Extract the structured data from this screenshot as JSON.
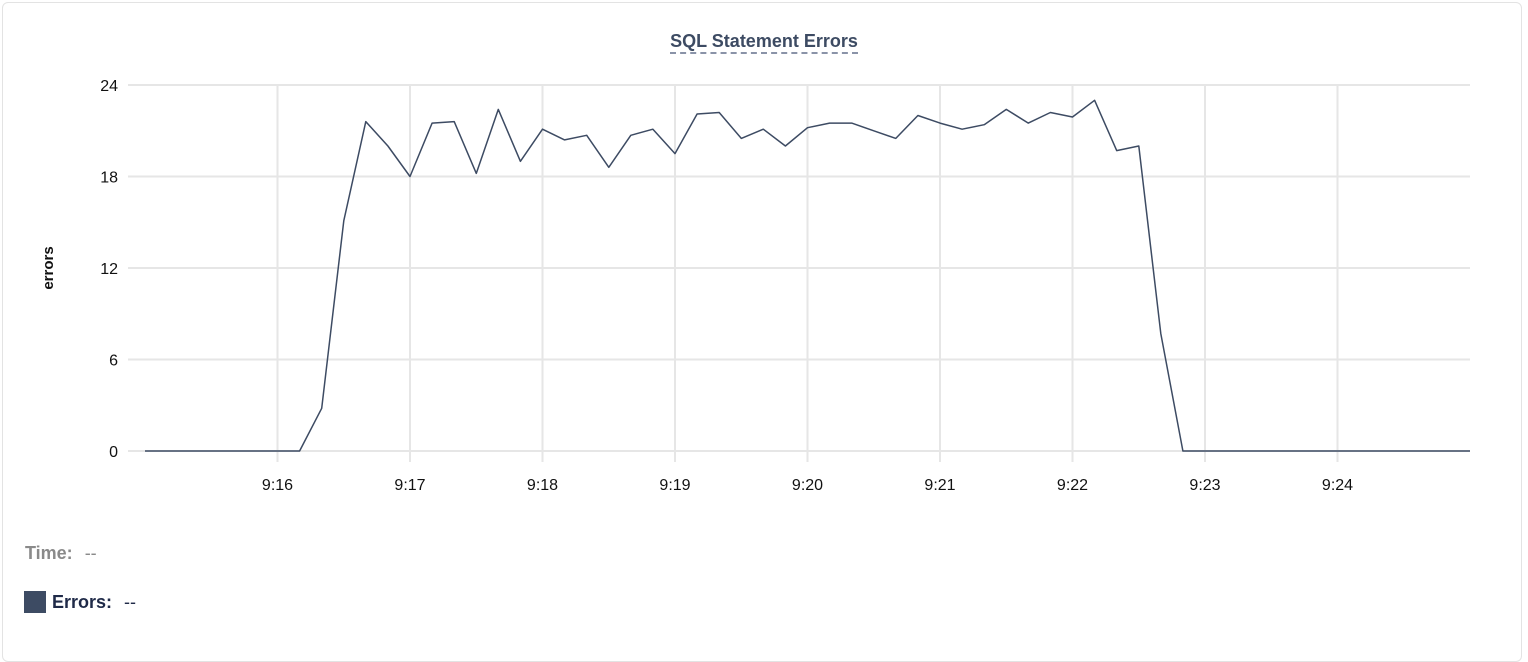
{
  "chart_data": {
    "type": "line",
    "title": "SQL Statement Errors",
    "xlabel": "",
    "ylabel": "errors",
    "ylim": [
      0,
      24
    ],
    "yticks": [
      "0",
      "6",
      "12",
      "18",
      "24"
    ],
    "xlim": [
      "9:15:00",
      "9:25:00"
    ],
    "xticks": [
      "9:16",
      "9:17",
      "9:18",
      "9:19",
      "9:20",
      "9:21",
      "9:22",
      "9:23",
      "9:24"
    ],
    "grid": true,
    "series_color": "#3d4b63",
    "series": [
      {
        "name": "Errors",
        "x": [
          "9:15:00",
          "9:15:10",
          "9:15:20",
          "9:15:30",
          "9:15:40",
          "9:15:50",
          "9:16:00",
          "9:16:10",
          "9:16:20",
          "9:16:30",
          "9:16:40",
          "9:16:50",
          "9:17:00",
          "9:17:10",
          "9:17:20",
          "9:17:30",
          "9:17:40",
          "9:17:50",
          "9:18:00",
          "9:18:10",
          "9:18:20",
          "9:18:30",
          "9:18:40",
          "9:18:50",
          "9:19:00",
          "9:19:10",
          "9:19:20",
          "9:19:30",
          "9:19:40",
          "9:19:50",
          "9:20:00",
          "9:20:10",
          "9:20:20",
          "9:20:30",
          "9:20:40",
          "9:20:50",
          "9:21:00",
          "9:21:10",
          "9:21:20",
          "9:21:30",
          "9:21:40",
          "9:21:50",
          "9:22:00",
          "9:22:10",
          "9:22:20",
          "9:22:30",
          "9:22:40",
          "9:22:50",
          "9:23:00",
          "9:23:10",
          "9:23:20",
          "9:23:30",
          "9:23:40",
          "9:23:50",
          "9:24:00",
          "9:24:10",
          "9:24:20",
          "9:24:30",
          "9:24:40",
          "9:24:50",
          "9:25:00"
        ],
        "values": [
          0,
          0,
          0,
          0,
          0,
          0,
          0,
          0,
          2.8,
          15.1,
          21.6,
          20.0,
          18.0,
          21.5,
          21.6,
          18.2,
          22.4,
          19.0,
          21.1,
          20.4,
          20.7,
          18.6,
          20.7,
          21.1,
          19.5,
          22.1,
          22.2,
          20.5,
          21.1,
          20.0,
          21.2,
          21.5,
          21.5,
          21.0,
          20.5,
          22.0,
          21.5,
          21.1,
          21.4,
          22.4,
          21.5,
          22.2,
          21.9,
          23.0,
          19.7,
          20.0,
          7.7,
          0,
          0,
          0,
          0,
          0,
          0,
          0,
          0,
          0,
          0,
          0,
          0,
          0,
          0
        ]
      }
    ]
  },
  "legend": {
    "time_label": "Time:",
    "time_value": "--",
    "errors_label": "Errors:",
    "errors_value": "--"
  }
}
